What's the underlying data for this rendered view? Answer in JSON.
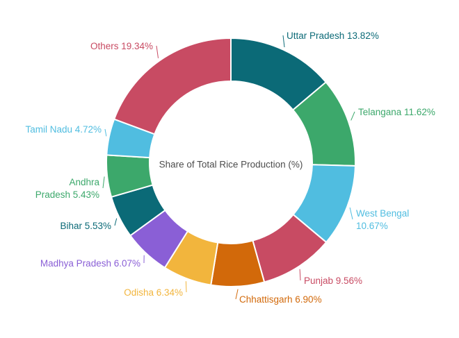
{
  "chart_data": {
    "type": "pie",
    "subtype": "donut",
    "title": "Share of Total Rice Production (%)",
    "center_label": "Share of Total Rice Production (%)",
    "legend_position": "none",
    "label_position": "outside-with-leader-lines",
    "label_color_matches_slice": true,
    "start_angle": "12-oclock",
    "direction": "clockwise",
    "total": 100,
    "categories": [
      "Uttar Pradesh",
      "Telangana",
      "West Bengal",
      "Punjab",
      "Chhattisgarh",
      "Odisha",
      "Madhya Pradesh",
      "Bihar",
      "Andhra Pradesh",
      "Tamil Nadu",
      "Others"
    ],
    "values": [
      13.82,
      11.62,
      10.67,
      9.56,
      6.9,
      6.34,
      6.07,
      5.53,
      5.43,
      4.72,
      19.34
    ],
    "series": [
      {
        "name": "Uttar Pradesh",
        "value": 13.82,
        "color": "#0b6a77",
        "label_lines": [
          "Uttar Pradesh 13.82%"
        ]
      },
      {
        "name": "Telangana",
        "value": 11.62,
        "color": "#3ca86b",
        "label_lines": [
          "Telangana 11.62%"
        ]
      },
      {
        "name": "West Bengal",
        "value": 10.67,
        "color": "#50bde0",
        "label_lines": [
          "West Bengal",
          "10.67%"
        ]
      },
      {
        "name": "Punjab",
        "value": 9.56,
        "color": "#c84b63",
        "label_lines": [
          "Punjab 9.56%"
        ]
      },
      {
        "name": "Chhattisgarh",
        "value": 6.9,
        "color": "#d2690a",
        "label_lines": [
          "Chhattisgarh 6.90%"
        ]
      },
      {
        "name": "Odisha",
        "value": 6.34,
        "color": "#f2b53d",
        "label_lines": [
          "Odisha 6.34%"
        ]
      },
      {
        "name": "Madhya Pradesh",
        "value": 6.07,
        "color": "#8a5fd6",
        "label_lines": [
          "Madhya Pradesh 6.07%"
        ]
      },
      {
        "name": "Bihar",
        "value": 5.53,
        "color": "#0b6a77",
        "label_lines": [
          "Bihar 5.53%"
        ]
      },
      {
        "name": "Andhra Pradesh",
        "value": 5.43,
        "color": "#3ca86b",
        "label_lines": [
          "Andhra",
          "Pradesh 5.43%"
        ]
      },
      {
        "name": "Tamil Nadu",
        "value": 4.72,
        "color": "#50bde0",
        "label_lines": [
          "Tamil Nadu 4.72%"
        ]
      },
      {
        "name": "Others",
        "value": 19.34,
        "color": "#c84b63",
        "label_lines": [
          "Others 19.34%"
        ]
      }
    ],
    "colors": {
      "background": "#ffffff",
      "center_label_text": "#4d4d4d",
      "slice_gap_stroke": "#ffffff"
    }
  }
}
